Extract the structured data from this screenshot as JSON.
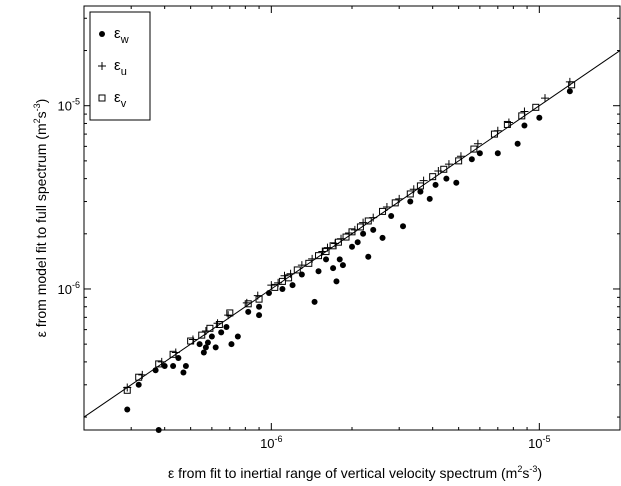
{
  "chart_data": {
    "type": "scatter",
    "title": "",
    "xlabel": {
      "main": "ε from fit to inertial range of vertical velocity spectrum (m",
      "sup1": "2",
      "mid": "s",
      "sup2": "-3",
      "end": ")"
    },
    "ylabel": {
      "main": "ε from model fit to full spectrum (m",
      "sup1": "2",
      "mid": "s",
      "sup2": "-3",
      "end": ")"
    },
    "x_scale": "log",
    "y_scale": "log",
    "xlim": [
      2e-07,
      2e-05
    ],
    "ylim": [
      1.7e-07,
      3.5e-05
    ],
    "grid": false,
    "legend_position": "top-left",
    "x_ticks": [
      {
        "value": 1e-06,
        "base": "10",
        "exp": "-6"
      },
      {
        "value": 1e-05,
        "base": "10",
        "exp": "-5"
      }
    ],
    "y_ticks": [
      {
        "value": 1e-06,
        "base": "10",
        "exp": "-6"
      },
      {
        "value": 1e-05,
        "base": "10",
        "exp": "-5"
      }
    ],
    "reference_line": {
      "type": "one-to-one",
      "x": [
        2e-07,
        2e-05
      ],
      "y": [
        2e-07,
        2e-05
      ]
    },
    "series": [
      {
        "name": "ε",
        "sub": "w",
        "marker": "filled-circle",
        "points": [
          [
            2.9e-07,
            2.2e-07
          ],
          [
            3.2e-07,
            3e-07
          ],
          [
            3.7e-07,
            3.6e-07
          ],
          [
            3.8e-07,
            1.7e-07
          ],
          [
            4e-07,
            3.8e-07
          ],
          [
            4.3e-07,
            3.8e-07
          ],
          [
            4.5e-07,
            4.2e-07
          ],
          [
            4.7e-07,
            3.5e-07
          ],
          [
            4.8e-07,
            3.8e-07
          ],
          [
            5.4e-07,
            5e-07
          ],
          [
            5.6e-07,
            4.5e-07
          ],
          [
            5.7e-07,
            4.8e-07
          ],
          [
            5.8e-07,
            5.1e-07
          ],
          [
            6e-07,
            5.5e-07
          ],
          [
            6.2e-07,
            4.8e-07
          ],
          [
            6.5e-07,
            5.8e-07
          ],
          [
            6.8e-07,
            6.2e-07
          ],
          [
            7.1e-07,
            5e-07
          ],
          [
            7.5e-07,
            5.5e-07
          ],
          [
            8.2e-07,
            7.5e-07
          ],
          [
            9e-07,
            7.2e-07
          ],
          [
            9e-07,
            8e-07
          ],
          [
            9.8e-07,
            9.5e-07
          ],
          [
            1.1e-06,
            1e-06
          ],
          [
            1.2e-06,
            1.05e-06
          ],
          [
            1.3e-06,
            1.2e-06
          ],
          [
            1.45e-06,
            8.5e-07
          ],
          [
            1.5e-06,
            1.25e-06
          ],
          [
            1.6e-06,
            1.45e-06
          ],
          [
            1.7e-06,
            1.3e-06
          ],
          [
            1.75e-06,
            1.1e-06
          ],
          [
            1.8e-06,
            1.45e-06
          ],
          [
            1.85e-06,
            1.35e-06
          ],
          [
            2e-06,
            1.7e-06
          ],
          [
            2.1e-06,
            1.8e-06
          ],
          [
            2.2e-06,
            2e-06
          ],
          [
            2.3e-06,
            1.5e-06
          ],
          [
            2.4e-06,
            2.1e-06
          ],
          [
            2.6e-06,
            1.9e-06
          ],
          [
            2.8e-06,
            2.5e-06
          ],
          [
            3.1e-06,
            2.2e-06
          ],
          [
            3.3e-06,
            3e-06
          ],
          [
            3.6e-06,
            3.4e-06
          ],
          [
            3.9e-06,
            3.1e-06
          ],
          [
            4.1e-06,
            3.7e-06
          ],
          [
            4.5e-06,
            4e-06
          ],
          [
            4.9e-06,
            3.8e-06
          ],
          [
            5.6e-06,
            5.1e-06
          ],
          [
            6e-06,
            5.5e-06
          ],
          [
            7e-06,
            5.5e-06
          ],
          [
            8.3e-06,
            6.2e-06
          ],
          [
            8.8e-06,
            7.8e-06
          ],
          [
            1e-05,
            8.6e-06
          ],
          [
            1.3e-05,
            1.2e-05
          ]
        ]
      },
      {
        "name": "ε",
        "sub": "u",
        "marker": "plus",
        "points": [
          [
            2.9e-07,
            2.9e-07
          ],
          [
            3.3e-07,
            3.4e-07
          ],
          [
            3.9e-07,
            4e-07
          ],
          [
            4.4e-07,
            4.5e-07
          ],
          [
            5.1e-07,
            5.3e-07
          ],
          [
            5.7e-07,
            5.9e-07
          ],
          [
            6.3e-07,
            6.5e-07
          ],
          [
            6.9e-07,
            7.2e-07
          ],
          [
            8.1e-07,
            8.4e-07
          ],
          [
            8.9e-07,
            9.2e-07
          ],
          [
            1e-06,
            1.05e-06
          ],
          [
            1.06e-06,
            1.08e-06
          ],
          [
            1.12e-06,
            1.18e-06
          ],
          [
            1.18e-06,
            1.21e-06
          ],
          [
            1.3e-06,
            1.35e-06
          ],
          [
            1.42e-06,
            1.46e-06
          ],
          [
            1.55e-06,
            1.6e-06
          ],
          [
            1.62e-06,
            1.68e-06
          ],
          [
            1.73e-06,
            1.77e-06
          ],
          [
            1.82e-06,
            1.88e-06
          ],
          [
            1.95e-06,
            2.02e-06
          ],
          [
            2.05e-06,
            2.1e-06
          ],
          [
            2.2e-06,
            2.3e-06
          ],
          [
            2.4e-06,
            2.45e-06
          ],
          [
            2.7e-06,
            2.8e-06
          ],
          [
            3e-06,
            3.1e-06
          ],
          [
            3.4e-06,
            3.5e-06
          ],
          [
            3.7e-06,
            3.9e-06
          ],
          [
            4.2e-06,
            4.4e-06
          ],
          [
            4.6e-06,
            4.8e-06
          ],
          [
            5.1e-06,
            5.3e-06
          ],
          [
            5.9e-06,
            6.2e-06
          ],
          [
            7e-06,
            7.3e-06
          ],
          [
            7.7e-06,
            8.1e-06
          ],
          [
            8.8e-06,
            9.3e-06
          ],
          [
            1.05e-05,
            1.1e-05
          ],
          [
            1.3e-05,
            1.35e-05
          ]
        ]
      },
      {
        "name": "ε",
        "sub": "v",
        "marker": "open-square",
        "points": [
          [
            2.9e-07,
            2.8e-07
          ],
          [
            3.2e-07,
            3.3e-07
          ],
          [
            3.8e-07,
            3.9e-07
          ],
          [
            4.3e-07,
            4.4e-07
          ],
          [
            5e-07,
            5.2e-07
          ],
          [
            5.5e-07,
            5.6e-07
          ],
          [
            5.9e-07,
            6.1e-07
          ],
          [
            6.4e-07,
            6.4e-07
          ],
          [
            7e-07,
            7.4e-07
          ],
          [
            8.2e-07,
            8.3e-07
          ],
          [
            9e-07,
            8.8e-07
          ],
          [
            1.03e-06,
            1.02e-06
          ],
          [
            1.1e-06,
            1.1e-06
          ],
          [
            1.16e-06,
            1.15e-06
          ],
          [
            1.25e-06,
            1.27e-06
          ],
          [
            1.38e-06,
            1.38e-06
          ],
          [
            1.5e-06,
            1.52e-06
          ],
          [
            1.6e-06,
            1.6e-06
          ],
          [
            1.7e-06,
            1.72e-06
          ],
          [
            1.78e-06,
            1.8e-06
          ],
          [
            1.9e-06,
            1.92e-06
          ],
          [
            2e-06,
            2.05e-06
          ],
          [
            2.15e-06,
            2.18e-06
          ],
          [
            2.3e-06,
            2.35e-06
          ],
          [
            2.6e-06,
            2.65e-06
          ],
          [
            2.9e-06,
            2.95e-06
          ],
          [
            3.3e-06,
            3.3e-06
          ],
          [
            3.6e-06,
            3.65e-06
          ],
          [
            4e-06,
            4.1e-06
          ],
          [
            4.4e-06,
            4.5e-06
          ],
          [
            5e-06,
            5e-06
          ],
          [
            5.7e-06,
            5.8e-06
          ],
          [
            6.8e-06,
            7e-06
          ],
          [
            7.6e-06,
            7.9e-06
          ],
          [
            8.6e-06,
            8.8e-06
          ],
          [
            9.7e-06,
            9.8e-06
          ],
          [
            1.32e-05,
            1.3e-05
          ]
        ]
      }
    ]
  }
}
